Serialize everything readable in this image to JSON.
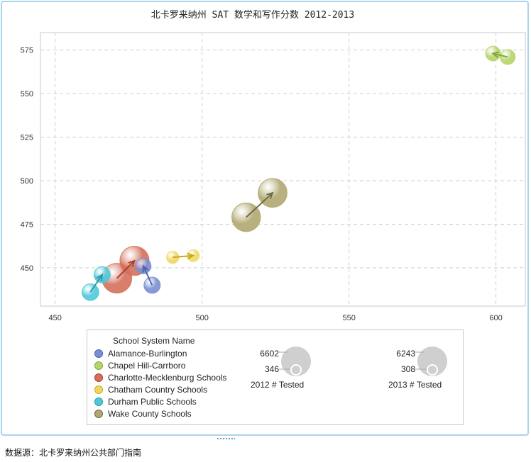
{
  "chart_data": {
    "type": "scatter",
    "title": "北卡罗来纳州 SAT 数学和写作分数  2012-2013",
    "xlim": [
      445,
      610
    ],
    "ylim": [
      428,
      585
    ],
    "x_ticks": [
      450,
      500,
      550,
      600
    ],
    "y_ticks": [
      450,
      475,
      500,
      525,
      550,
      575
    ],
    "grid": true,
    "legend_title": "School System Name",
    "series": [
      {
        "name": "Alamance-Burlington",
        "color": "#7b8fd0",
        "points": [
          {
            "year": 2012,
            "x": 483,
            "y": 440,
            "tested": 1100
          },
          {
            "year": 2013,
            "x": 480,
            "y": 451,
            "tested": 900
          }
        ]
      },
      {
        "name": "Chapel Hill-Carrboro",
        "color": "#b5d46a",
        "points": [
          {
            "year": 2012,
            "x": 604,
            "y": 571,
            "tested": 800
          },
          {
            "year": 2013,
            "x": 599,
            "y": 573,
            "tested": 750
          }
        ]
      },
      {
        "name": "Charlotte-Mecklenburg Schools",
        "color": "#d4705a",
        "points": [
          {
            "year": 2012,
            "x": 471,
            "y": 444,
            "tested": 6602
          },
          {
            "year": 2013,
            "x": 477,
            "y": 454,
            "tested": 6243
          }
        ]
      },
      {
        "name": "Chatham Country Schools",
        "color": "#f0d860",
        "points": [
          {
            "year": 2012,
            "x": 490,
            "y": 456,
            "tested": 346
          },
          {
            "year": 2013,
            "x": 497,
            "y": 457,
            "tested": 308
          }
        ]
      },
      {
        "name": "Durham Public Schools",
        "color": "#4fc8d8",
        "points": [
          {
            "year": 2012,
            "x": 462,
            "y": 436,
            "tested": 1200
          },
          {
            "year": 2013,
            "x": 466,
            "y": 446,
            "tested": 1100
          }
        ]
      },
      {
        "name": "Wake County Schools",
        "color": "#b0a870",
        "points": [
          {
            "year": 2012,
            "x": 515,
            "y": 479,
            "tested": 6000
          },
          {
            "year": 2013,
            "x": 524,
            "y": 493,
            "tested": 6100
          }
        ]
      }
    ],
    "size_legends": [
      {
        "max": "6602",
        "min": "346",
        "caption": "2012 # Tested"
      },
      {
        "max": "6243",
        "min": "308",
        "caption": "2013 # Tested"
      }
    ]
  },
  "source_note": "数据源：北卡罗来纳州公共部门指南"
}
